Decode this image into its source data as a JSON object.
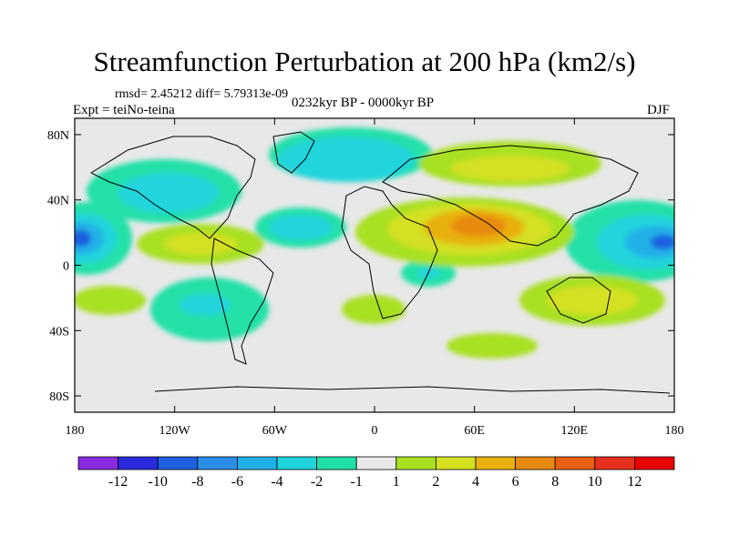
{
  "title": "Streamfunction Perturbation at 200 hPa (km2/s)",
  "stats": "rmsd= 2.45212 diff= 5.79313e-09",
  "experiment": "Expt = teiNo-teina",
  "period": "0232kyr BP - 0000kyr BP",
  "season": "DJF",
  "lat_ticks": [
    "80N",
    "40N",
    "0",
    "40S",
    "80S"
  ],
  "lon_ticks": [
    "180",
    "120W",
    "60W",
    "0",
    "60E",
    "120E",
    "180"
  ],
  "colorbar": {
    "labels": [
      "-12",
      "-10",
      "-8",
      "-6",
      "-4",
      "-2",
      "-1",
      "1",
      "2",
      "4",
      "6",
      "8",
      "10",
      "12"
    ],
    "colors": [
      "#8a2be2",
      "#2a2adc",
      "#1e5fe0",
      "#2a8ee8",
      "#20b0e8",
      "#20d4dc",
      "#20e0a8",
      "#e8e8e8",
      "#a8e020",
      "#d4e020",
      "#e8b010",
      "#e88a10",
      "#e86010",
      "#e83020",
      "#e80000"
    ]
  },
  "colors": {
    "land_outline": "#000000",
    "background": "#e8e8e8"
  }
}
